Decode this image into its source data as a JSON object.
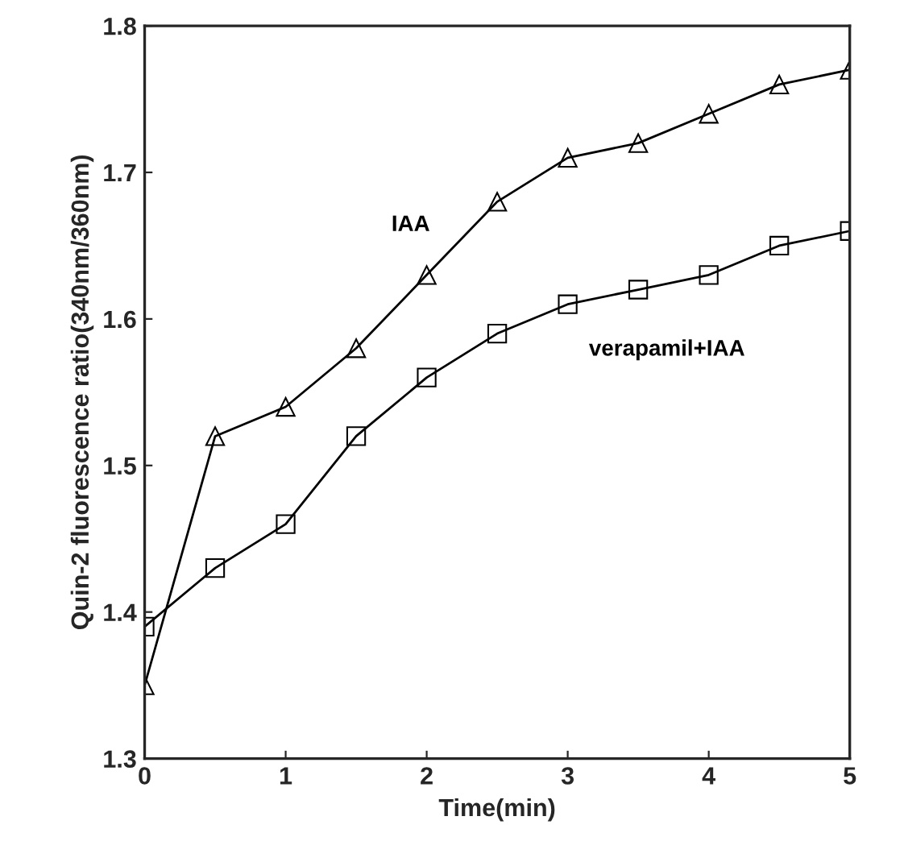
{
  "chart_data": {
    "type": "line",
    "xlabel": "Time(min)",
    "ylabel": "Quin-2 fluorescence ratio(340nm/360nm)",
    "x": [
      0,
      0.5,
      1,
      1.5,
      2,
      2.5,
      3,
      3.5,
      4,
      4.5,
      5
    ],
    "series": [
      {
        "name": "IAA",
        "color": "#000000",
        "marker": "triangle",
        "values": [
          1.35,
          1.52,
          1.54,
          1.58,
          1.63,
          1.68,
          1.71,
          1.72,
          1.74,
          1.76,
          1.77
        ]
      },
      {
        "name": "verapamil+IAA",
        "color": "#000000",
        "marker": "square",
        "values": [
          1.39,
          1.43,
          1.46,
          1.52,
          1.56,
          1.59,
          1.61,
          1.62,
          1.63,
          1.65,
          1.66
        ]
      }
    ],
    "xlim": [
      0,
      5
    ],
    "ylim": [
      1.3,
      1.8
    ],
    "xticks": [
      0,
      1,
      2,
      3,
      4,
      5
    ],
    "yticks": [
      {
        "value": 1.3,
        "label": "1.3"
      },
      {
        "value": 1.4,
        "label": "1.4"
      },
      {
        "value": 1.5,
        "label": "1.5"
      },
      {
        "value": 1.6,
        "label": "1.6"
      },
      {
        "value": 1.7,
        "label": "1.7"
      },
      {
        "value": 1.8,
        "label": "1.8"
      }
    ],
    "grid": false,
    "legend": false,
    "line_style": "solid"
  }
}
